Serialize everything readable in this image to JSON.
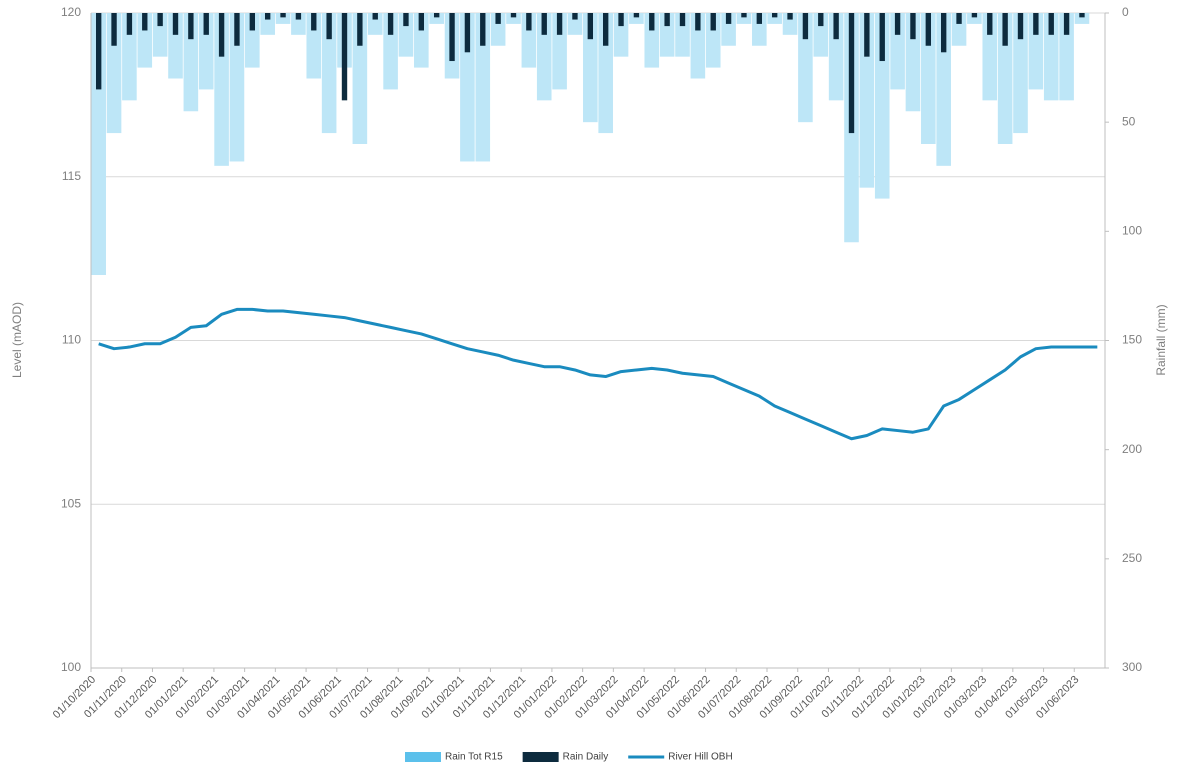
{
  "chart_data": {
    "type": "combo",
    "y_label": "Level (mAOD)",
    "y2_label": "Rainfall (mm)",
    "categories": [
      "01/10/2020",
      null,
      "01/11/2020",
      null,
      "01/12/2020",
      null,
      "01/01/2021",
      null,
      "01/02/2021",
      null,
      "01/03/2021",
      null,
      "01/04/2021",
      null,
      "01/05/2021",
      null,
      "01/06/2021",
      null,
      "01/07/2021",
      null,
      "01/08/2021",
      null,
      "01/09/2021",
      null,
      "01/10/2021",
      null,
      "01/11/2021",
      null,
      "01/12/2021",
      null,
      "01/01/2022",
      null,
      "01/02/2022",
      null,
      "01/03/2022",
      null,
      "01/04/2022",
      null,
      "01/05/2022",
      null,
      "01/06/2022",
      null,
      "01/07/2022",
      null,
      "01/08/2022",
      null,
      "01/09/2022",
      null,
      "01/10/2022",
      null,
      "01/11/2022",
      null,
      "01/12/2022",
      null,
      "01/01/2023",
      null,
      "01/02/2023",
      null,
      "01/03/2023",
      null,
      "01/04/2023",
      null,
      "01/05/2023",
      null,
      "01/06/2023",
      null
    ],
    "series": [
      {
        "name": "Rain Tot R15",
        "type": "bar",
        "axis": "y2",
        "color": "#bde6f7",
        "values": [
          120,
          55,
          40,
          25,
          20,
          30,
          45,
          35,
          70,
          68,
          25,
          10,
          5,
          10,
          30,
          55,
          25,
          60,
          10,
          35,
          20,
          25,
          5,
          30,
          68,
          68,
          15,
          5,
          25,
          40,
          35,
          10,
          50,
          55,
          20,
          5,
          25,
          20,
          20,
          30,
          25,
          15,
          5,
          15,
          5,
          10,
          50,
          20,
          40,
          105,
          80,
          85,
          35,
          45,
          60,
          70,
          15,
          5,
          40,
          60,
          55,
          35,
          40,
          40,
          5,
          0
        ]
      },
      {
        "name": "Rain Daily",
        "type": "bar",
        "axis": "y2",
        "color": "#0d2b3e",
        "values": [
          35,
          15,
          10,
          8,
          6,
          10,
          12,
          10,
          20,
          15,
          8,
          3,
          2,
          3,
          8,
          12,
          40,
          15,
          3,
          10,
          6,
          8,
          2,
          22,
          18,
          15,
          5,
          2,
          8,
          10,
          10,
          3,
          12,
          15,
          6,
          2,
          8,
          6,
          6,
          8,
          8,
          5,
          2,
          5,
          2,
          3,
          12,
          6,
          12,
          55,
          20,
          22,
          10,
          12,
          15,
          18,
          5,
          2,
          10,
          15,
          12,
          10,
          10,
          10,
          2,
          0
        ]
      },
      {
        "name": "River Hill OBH",
        "type": "line",
        "color": "#1a8bbf",
        "values": [
          109.9,
          109.75,
          109.8,
          109.9,
          109.9,
          110.1,
          110.4,
          110.45,
          110.8,
          110.95,
          110.95,
          110.9,
          110.9,
          110.85,
          110.8,
          110.75,
          110.7,
          110.6,
          110.5,
          110.4,
          110.3,
          110.2,
          110.05,
          109.9,
          109.75,
          109.65,
          109.55,
          109.4,
          109.3,
          109.2,
          109.2,
          109.1,
          108.95,
          108.9,
          109.05,
          109.1,
          109.15,
          109.1,
          109.0,
          108.95,
          108.9,
          108.7,
          108.5,
          108.3,
          108.0,
          107.8,
          107.6,
          107.4,
          107.2,
          107.0,
          107.1,
          107.3,
          107.25,
          107.2,
          107.3,
          108.0,
          108.2,
          108.5,
          108.8,
          109.1,
          109.5,
          109.75,
          109.8,
          109.8,
          109.8,
          109.8
        ]
      }
    ],
    "ylim": [
      100,
      120
    ],
    "yticks": [
      100,
      105,
      110,
      115,
      120
    ],
    "y2lim": [
      300,
      0
    ],
    "y2ticks": [
      0,
      50,
      100,
      150,
      200,
      250,
      300
    ],
    "grid": true,
    "legend": "bottom"
  }
}
